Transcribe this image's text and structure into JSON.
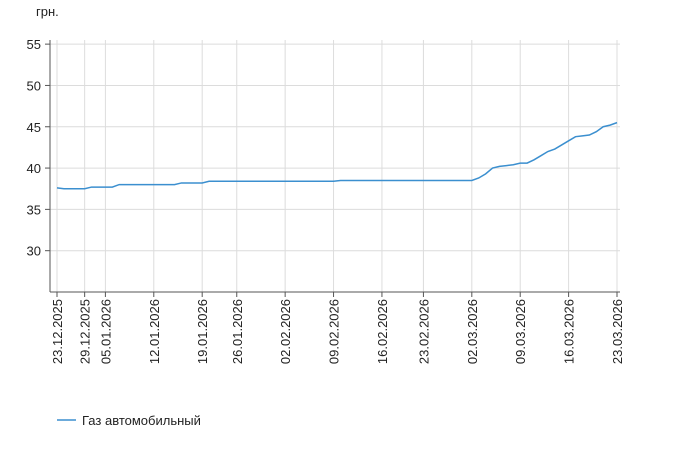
{
  "chart_data": {
    "type": "line",
    "y_label": "грн.",
    "categories": [
      "23.12.2025",
      null,
      null,
      null,
      "29.12.2025",
      null,
      null,
      "05.01.2026",
      null,
      null,
      null,
      null,
      null,
      null,
      "12.01.2026",
      null,
      null,
      null,
      null,
      null,
      null,
      "19.01.2026",
      null,
      null,
      null,
      null,
      "26.01.2026",
      null,
      null,
      null,
      null,
      null,
      null,
      "02.02.2026",
      null,
      null,
      null,
      null,
      null,
      null,
      "09.02.2026",
      null,
      null,
      null,
      null,
      null,
      null,
      "16.02.2026",
      null,
      null,
      null,
      null,
      null,
      "23.02.2026",
      null,
      null,
      null,
      null,
      null,
      null,
      "02.03.2026",
      null,
      null,
      null,
      null,
      null,
      null,
      "09.03.2026",
      null,
      null,
      null,
      null,
      null,
      null,
      "16.03.2026",
      null,
      null,
      null,
      null,
      null,
      null,
      "23.03.2026"
    ],
    "series": [
      {
        "name": "Газ автомобильный",
        "color": "#3b8fcf",
        "values": [
          37.6,
          37.5,
          37.5,
          37.5,
          37.5,
          37.7,
          37.7,
          37.7,
          37.7,
          38.0,
          38.0,
          38.0,
          38.0,
          38.0,
          38.0,
          38.0,
          38.0,
          38.0,
          38.2,
          38.2,
          38.2,
          38.2,
          38.4,
          38.4,
          38.4,
          38.4,
          38.4,
          38.4,
          38.4,
          38.4,
          38.4,
          38.4,
          38.4,
          38.4,
          38.4,
          38.4,
          38.4,
          38.4,
          38.4,
          38.4,
          38.4,
          38.5,
          38.5,
          38.5,
          38.5,
          38.5,
          38.5,
          38.5,
          38.5,
          38.5,
          38.5,
          38.5,
          38.5,
          38.5,
          38.5,
          38.5,
          38.5,
          38.5,
          38.5,
          38.5,
          38.5,
          38.8,
          39.3,
          40.0,
          40.2,
          40.3,
          40.4,
          40.6,
          40.6,
          41.0,
          41.5,
          42.0,
          42.3,
          42.8,
          43.3,
          43.8,
          43.9,
          44.0,
          44.4,
          45.0,
          45.2,
          45.5
        ]
      }
    ],
    "ylim": [
      25,
      55.5
    ],
    "yticks": [
      30,
      35,
      40,
      45,
      50,
      55
    ],
    "grid": true,
    "legend": "bottom-left"
  }
}
